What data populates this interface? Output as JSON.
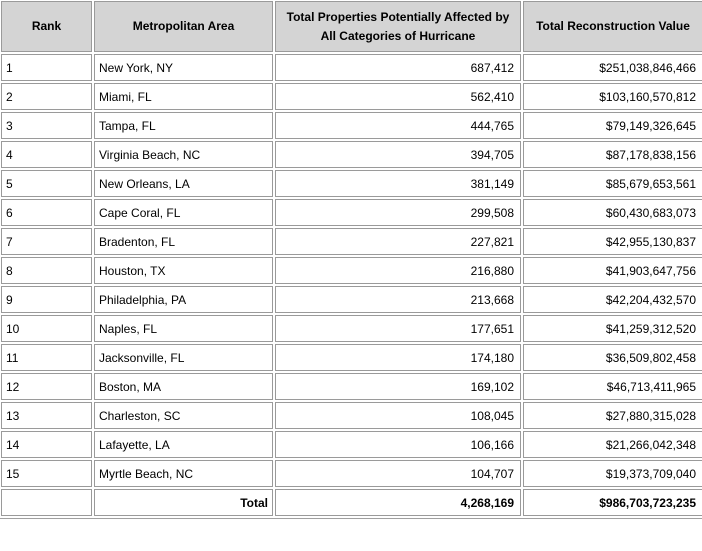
{
  "headers": {
    "rank": "Rank",
    "area": "Metropolitan Area",
    "properties": "Total Properties Potentially Affected by All Categories of Hurricane",
    "value": "Total Reconstruction Value"
  },
  "rows": [
    {
      "rank": "1",
      "area": "New York, NY",
      "properties": "687,412",
      "value": "$251,038,846,466"
    },
    {
      "rank": "2",
      "area": "Miami, FL",
      "properties": "562,410",
      "value": "$103,160,570,812"
    },
    {
      "rank": "3",
      "area": "Tampa, FL",
      "properties": "444,765",
      "value": "$79,149,326,645"
    },
    {
      "rank": "4",
      "area": "Virginia Beach, NC",
      "properties": "394,705",
      "value": "$87,178,838,156"
    },
    {
      "rank": "5",
      "area": "New Orleans, LA",
      "properties": "381,149",
      "value": "$85,679,653,561"
    },
    {
      "rank": "6",
      "area": "Cape Coral, FL",
      "properties": "299,508",
      "value": "$60,430,683,073"
    },
    {
      "rank": "7",
      "area": "Bradenton, FL",
      "properties": "227,821",
      "value": "$42,955,130,837"
    },
    {
      "rank": "8",
      "area": "Houston, TX",
      "properties": "216,880",
      "value": "$41,903,647,756"
    },
    {
      "rank": "9",
      "area": "Philadelphia, PA",
      "properties": "213,668",
      "value": "$42,204,432,570"
    },
    {
      "rank": "10",
      "area": "Naples, FL",
      "properties": "177,651",
      "value": "$41,259,312,520"
    },
    {
      "rank": "11",
      "area": "Jacksonville, FL",
      "properties": "174,180",
      "value": "$36,509,802,458"
    },
    {
      "rank": "12",
      "area": "Boston, MA",
      "properties": "169,102",
      "value": "$46,713,411,965"
    },
    {
      "rank": "13",
      "area": "Charleston, SC",
      "properties": "108,045",
      "value": "$27,880,315,028"
    },
    {
      "rank": "14",
      "area": "Lafayette, LA",
      "properties": "106,166",
      "value": "$21,266,042,348"
    },
    {
      "rank": "15",
      "area": "Myrtle Beach, NC",
      "properties": "104,707",
      "value": "$19,373,709,040"
    }
  ],
  "total": {
    "label": "Total",
    "properties": "4,268,169",
    "value": "$986,703,723,235"
  }
}
